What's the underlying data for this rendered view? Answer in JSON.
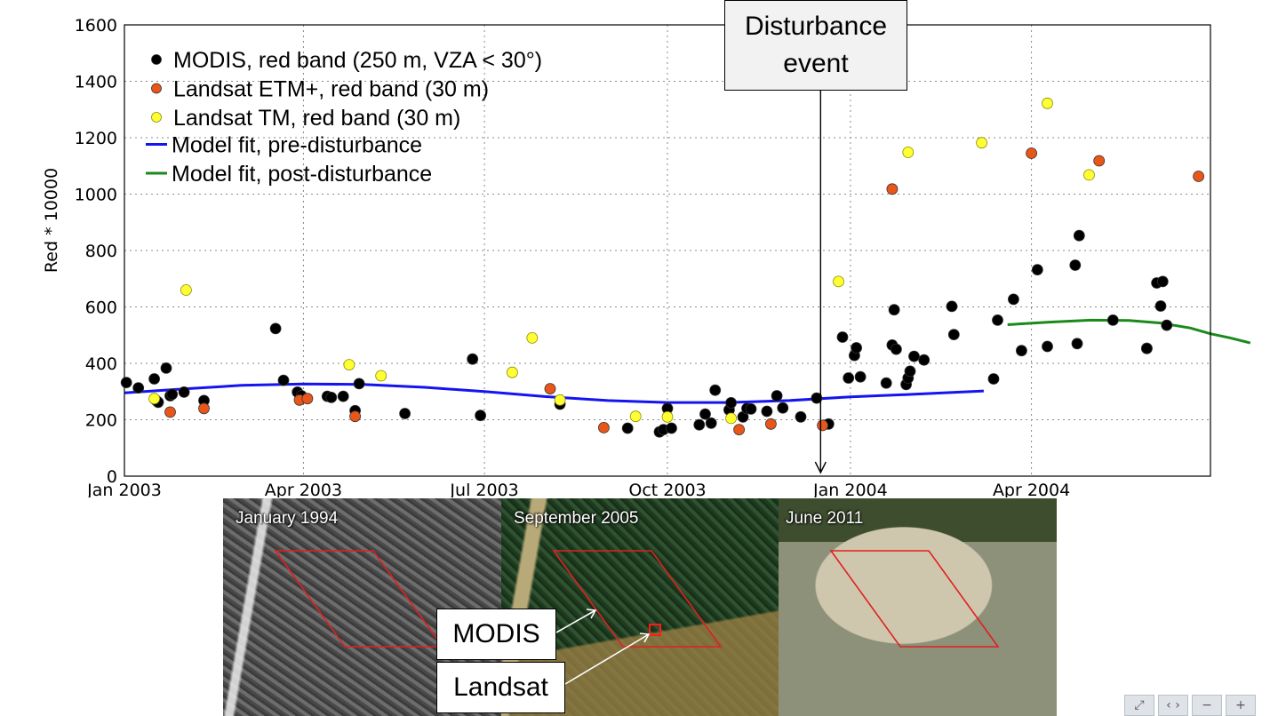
{
  "chart_data": {
    "type": "scatter",
    "xlabel": "",
    "ylabel": "Red * 10000",
    "ylim": [
      0,
      1600
    ],
    "xlim": [
      "2003-01-01",
      "2004-06-30"
    ],
    "x_ticks": [
      {
        "date": "2003-01-01",
        "label": "Jan 2003"
      },
      {
        "date": "2003-04-01",
        "label": "Apr 2003"
      },
      {
        "date": "2003-07-01",
        "label": "Jul 2003"
      },
      {
        "date": "2003-10-01",
        "label": "Oct 2003"
      },
      {
        "date": "2004-01-01",
        "label": "Jan 2004"
      },
      {
        "date": "2004-04-01",
        "label": "Apr 2004"
      }
    ],
    "y_ticks": [
      0,
      200,
      400,
      600,
      800,
      1000,
      1200,
      1400,
      1600
    ],
    "grid": true,
    "legend_position": "top-left",
    "series": [
      {
        "name": "MODIS, red band (250 m, VZA < 30°)",
        "kind": "points",
        "color": "#000000",
        "points": [
          [
            "2003-01-02",
            332
          ],
          [
            "2003-01-08",
            313
          ],
          [
            "2003-01-16",
            345
          ],
          [
            "2003-01-17",
            268
          ],
          [
            "2003-01-18",
            262
          ],
          [
            "2003-01-22",
            383
          ],
          [
            "2003-01-24",
            285
          ],
          [
            "2003-01-25",
            290
          ],
          [
            "2003-01-31",
            298
          ],
          [
            "2003-02-10",
            268
          ],
          [
            "2003-03-18",
            523
          ],
          [
            "2003-03-22",
            340
          ],
          [
            "2003-03-29",
            298
          ],
          [
            "2003-03-31",
            285
          ],
          [
            "2003-04-13",
            283
          ],
          [
            "2003-04-15",
            279
          ],
          [
            "2003-04-21",
            283
          ],
          [
            "2003-04-27",
            232
          ],
          [
            "2003-04-29",
            328
          ],
          [
            "2003-05-22",
            222
          ],
          [
            "2003-06-25",
            415
          ],
          [
            "2003-06-29",
            215
          ],
          [
            "2003-08-08",
            255
          ],
          [
            "2003-09-11",
            170
          ],
          [
            "2003-09-27",
            157
          ],
          [
            "2003-09-29",
            165
          ],
          [
            "2003-10-01",
            240
          ],
          [
            "2003-10-03",
            170
          ],
          [
            "2003-10-17",
            182
          ],
          [
            "2003-10-20",
            220
          ],
          [
            "2003-10-23",
            188
          ],
          [
            "2003-10-25",
            305
          ],
          [
            "2003-11-01",
            235
          ],
          [
            "2003-11-02",
            260
          ],
          [
            "2003-11-08",
            210
          ],
          [
            "2003-11-10",
            240
          ],
          [
            "2003-11-12",
            238
          ],
          [
            "2003-11-20",
            230
          ],
          [
            "2003-11-25",
            285
          ],
          [
            "2003-11-28",
            242
          ],
          [
            "2003-12-07",
            210
          ],
          [
            "2003-12-15",
            277
          ],
          [
            "2003-12-21",
            185
          ],
          [
            "2003-12-28",
            493
          ],
          [
            "2003-12-31",
            348
          ],
          [
            "2004-01-03",
            428
          ],
          [
            "2004-01-04",
            455
          ],
          [
            "2004-01-06",
            352
          ],
          [
            "2004-01-19",
            330
          ],
          [
            "2004-01-22",
            465
          ],
          [
            "2004-01-23",
            590
          ],
          [
            "2004-01-24",
            450
          ],
          [
            "2004-01-29",
            325
          ],
          [
            "2004-01-30",
            348
          ],
          [
            "2004-01-31",
            372
          ],
          [
            "2004-02-02",
            425
          ],
          [
            "2004-02-07",
            412
          ],
          [
            "2004-02-21",
            602
          ],
          [
            "2004-02-22",
            502
          ],
          [
            "2004-03-13",
            345
          ],
          [
            "2004-03-15",
            553
          ],
          [
            "2004-03-23",
            627
          ],
          [
            "2004-03-27",
            445
          ],
          [
            "2004-04-04",
            732
          ],
          [
            "2004-04-09",
            460
          ],
          [
            "2004-04-23",
            748
          ],
          [
            "2004-04-24",
            470
          ],
          [
            "2004-04-25",
            853
          ],
          [
            "2004-05-12",
            553
          ],
          [
            "2004-05-29",
            453
          ],
          [
            "2004-05-29",
            453
          ],
          [
            "2004-06-03",
            685
          ],
          [
            "2004-06-05",
            603
          ],
          [
            "2004-06-06",
            690
          ],
          [
            "2004-06-08",
            535
          ]
        ]
      },
      {
        "name": "Landsat ETM+, red band (30 m)",
        "kind": "points",
        "color": "#e8561a",
        "points": [
          [
            "2003-01-24",
            227
          ],
          [
            "2003-02-10",
            240
          ],
          [
            "2003-03-30",
            270
          ],
          [
            "2003-04-03",
            275
          ],
          [
            "2003-04-27",
            212
          ],
          [
            "2003-08-03",
            310
          ],
          [
            "2003-08-30",
            172
          ],
          [
            "2003-11-06",
            165
          ],
          [
            "2003-11-22",
            185
          ],
          [
            "2003-12-18",
            180
          ],
          [
            "2004-01-22",
            1018
          ],
          [
            "2004-04-01",
            1145
          ],
          [
            "2004-05-05",
            1118
          ],
          [
            "2004-06-24",
            1063
          ]
        ]
      },
      {
        "name": "Landsat TM, red band (30 m)",
        "kind": "points",
        "color": "#ffff33",
        "points": [
          [
            "2003-01-16",
            275
          ],
          [
            "2003-02-01",
            660
          ],
          [
            "2003-04-24",
            395
          ],
          [
            "2003-05-10",
            356
          ],
          [
            "2003-07-15",
            368
          ],
          [
            "2003-07-25",
            490
          ],
          [
            "2003-08-08",
            270
          ],
          [
            "2003-09-15",
            212
          ],
          [
            "2003-10-01",
            210
          ],
          [
            "2003-11-02",
            205
          ],
          [
            "2003-12-26",
            690
          ],
          [
            "2004-01-30",
            1148
          ],
          [
            "2004-03-07",
            1182
          ],
          [
            "2004-04-09",
            1322
          ],
          [
            "2004-04-30",
            1068
          ]
        ]
      },
      {
        "name": "Model fit, pre-disturbance",
        "kind": "line",
        "color": "#1414f0",
        "points": [
          [
            "2003-01-01",
            295
          ],
          [
            "2003-02-01",
            310
          ],
          [
            "2003-03-01",
            322
          ],
          [
            "2003-04-01",
            327
          ],
          [
            "2003-05-01",
            325
          ],
          [
            "2003-06-01",
            315
          ],
          [
            "2003-07-01",
            300
          ],
          [
            "2003-08-01",
            282
          ],
          [
            "2003-09-01",
            268
          ],
          [
            "2003-10-01",
            261
          ],
          [
            "2003-11-01",
            261
          ],
          [
            "2003-12-01",
            268
          ],
          [
            "2004-01-01",
            281
          ],
          [
            "2004-02-01",
            290
          ],
          [
            "2004-03-08",
            302
          ]
        ]
      },
      {
        "name": "Model fit, post-disturbance",
        "kind": "line",
        "color": "#1a8a1a",
        "points": [
          [
            "2004-03-20",
            537
          ],
          [
            "2004-04-10",
            546
          ],
          [
            "2004-05-01",
            553
          ],
          [
            "2004-05-20",
            552
          ],
          [
            "2004-06-05",
            543
          ],
          [
            "2004-06-20",
            525
          ],
          [
            "2004-06-30",
            505
          ],
          [
            "2004-07-10",
            490
          ],
          [
            "2004-07-20",
            472
          ]
        ]
      }
    ],
    "annotations": [
      {
        "text": "Disturbance event",
        "date": "2003-12-17"
      }
    ]
  },
  "callout": {
    "line1": "Disturbance",
    "line2": "event"
  },
  "photos": {
    "p1": "January 1994",
    "p2": "September 2005",
    "p3": "June 2011"
  },
  "labels": {
    "modis": "MODIS",
    "landsat": "Landsat"
  },
  "toolbar": [
    {
      "icon": "fit-screen-icon",
      "glyph": "⤢"
    },
    {
      "icon": "expand-width-icon",
      "glyph": "‹ ›"
    },
    {
      "icon": "zoom-out-icon",
      "glyph": "−"
    },
    {
      "icon": "zoom-in-icon",
      "glyph": "+"
    }
  ]
}
